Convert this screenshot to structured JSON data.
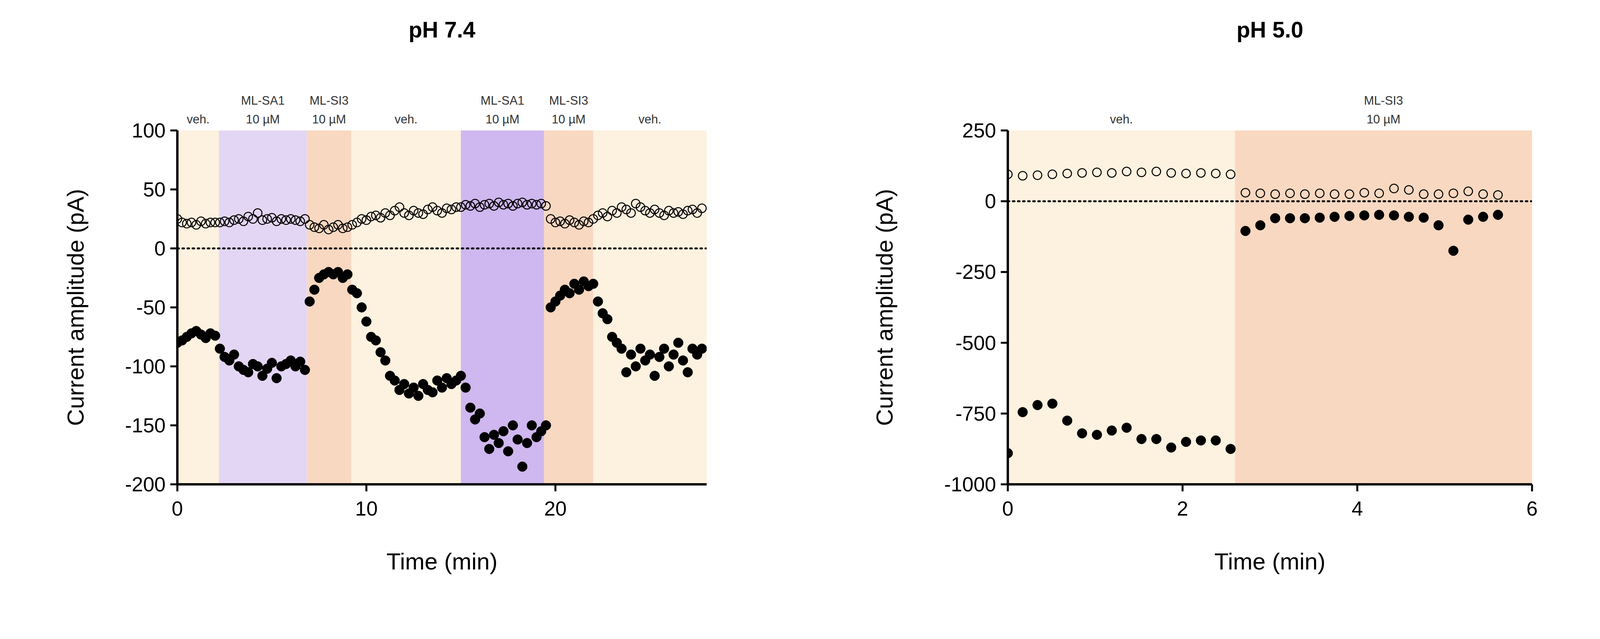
{
  "chart_data": [
    {
      "type": "scatter",
      "title": "pH 7.4",
      "x_label": "Time (min)",
      "y_label": "Current amplitude (pA)",
      "xlim": [
        0,
        28
      ],
      "xticks": [
        0,
        10,
        20
      ],
      "ylim": [
        -200,
        100
      ],
      "yticks": [
        -200,
        -150,
        -100,
        -50,
        0,
        50,
        100
      ],
      "annotations": [
        {
          "type": "hline",
          "y": 0,
          "line_style": "dotted"
        }
      ],
      "bands": [
        {
          "x0": 0,
          "x1": 2.2,
          "label": "veh.",
          "color": "#fdf1df"
        },
        {
          "x0": 2.2,
          "x1": 6.85,
          "label": "ML-SA1",
          "concentration": "10 µM",
          "color": "#e3d6f4"
        },
        {
          "x0": 6.85,
          "x1": 9.2,
          "label": "ML-SI3",
          "concentration": "10 µM",
          "color": "#f9d8c1"
        },
        {
          "x0": 9.2,
          "x1": 15,
          "label": "veh.",
          "color": "#fdf1df"
        },
        {
          "x0": 15,
          "x1": 19.4,
          "label": "ML-SA1",
          "concentration": "10 µM",
          "color": "#cfb7ef"
        },
        {
          "x0": 19.4,
          "x1": 22,
          "label": "ML-SI3",
          "concentration": "10 µM",
          "color": "#f9d8c1"
        },
        {
          "x0": 22,
          "x1": 28,
          "label": "veh.",
          "color": "#fdf1df"
        }
      ],
      "x": [
        0,
        0.25,
        0.5,
        0.75,
        1,
        1.25,
        1.5,
        1.75,
        2,
        2.25,
        2.5,
        2.75,
        3,
        3.25,
        3.5,
        3.75,
        4,
        4.25,
        4.5,
        4.75,
        5,
        5.25,
        5.5,
        5.75,
        6,
        6.25,
        6.5,
        6.75,
        7,
        7.25,
        7.5,
        7.75,
        8,
        8.25,
        8.5,
        8.75,
        9,
        9.25,
        9.5,
        9.75,
        10,
        10.25,
        10.5,
        10.75,
        11,
        11.25,
        11.5,
        11.75,
        12,
        12.25,
        12.5,
        12.75,
        13,
        13.25,
        13.5,
        13.75,
        14,
        14.25,
        14.5,
        14.75,
        15,
        15.25,
        15.5,
        15.75,
        16,
        16.25,
        16.5,
        16.75,
        17,
        17.25,
        17.5,
        17.75,
        18,
        18.25,
        18.5,
        18.75,
        19,
        19.25,
        19.5,
        19.75,
        20,
        20.25,
        20.5,
        20.75,
        21,
        21.25,
        21.5,
        21.75,
        22,
        22.25,
        22.5,
        22.75,
        23,
        23.25,
        23.5,
        23.75,
        24,
        24.25,
        24.5,
        24.75,
        25,
        25.25,
        25.5,
        25.75,
        26,
        26.25,
        26.5,
        26.75,
        27,
        27.25,
        27.5,
        27.75
      ],
      "series": [
        {
          "marker": "filled circle",
          "color": "#000000",
          "values": [
            -80,
            -78,
            -75,
            -72,
            -70,
            -73,
            -76,
            -72,
            -74,
            -85,
            -92,
            -95,
            -90,
            -100,
            -103,
            -105,
            -98,
            -100,
            -108,
            -102,
            -97,
            -110,
            -100,
            -98,
            -95,
            -100,
            -96,
            -103,
            -45,
            -35,
            -25,
            -22,
            -20,
            -22,
            -20,
            -25,
            -22,
            -35,
            -38,
            -50,
            -62,
            -75,
            -78,
            -88,
            -95,
            -108,
            -112,
            -120,
            -115,
            -123,
            -118,
            -125,
            -115,
            -120,
            -122,
            -112,
            -118,
            -110,
            -115,
            -112,
            -108,
            -118,
            -135,
            -145,
            -140,
            -160,
            -170,
            -158,
            -165,
            -155,
            -172,
            -150,
            -162,
            -185,
            -165,
            -150,
            -160,
            -155,
            -150,
            -50,
            -45,
            -40,
            -35,
            -38,
            -30,
            -35,
            -28,
            -32,
            -30,
            -45,
            -55,
            -60,
            -75,
            -80,
            -85,
            -105,
            -90,
            -100,
            -85,
            -95,
            -90,
            -108,
            -92,
            -85,
            -100,
            -90,
            -80,
            -95,
            -105,
            -85,
            -90,
            -85
          ]
        },
        {
          "marker": "open circle",
          "color": "#000000",
          "values": [
            25,
            22,
            21,
            22,
            20,
            23,
            21,
            22,
            22,
            22,
            23,
            22,
            24,
            25,
            23,
            27,
            25,
            30,
            24,
            25,
            26,
            23,
            25,
            24,
            25,
            24,
            23,
            25,
            20,
            18,
            17,
            20,
            16,
            18,
            20,
            17,
            18,
            20,
            22,
            25,
            24,
            27,
            28,
            26,
            30,
            28,
            32,
            35,
            30,
            28,
            32,
            30,
            29,
            33,
            35,
            32,
            30,
            34,
            33,
            35,
            35,
            37,
            36,
            38,
            35,
            37,
            38,
            36,
            39,
            37,
            38,
            36,
            38,
            39,
            37,
            38,
            37,
            38,
            36,
            25,
            22,
            23,
            21,
            24,
            22,
            20,
            23,
            22,
            25,
            28,
            30,
            27,
            32,
            30,
            35,
            33,
            30,
            38,
            35,
            32,
            30,
            33,
            30,
            28,
            32,
            30,
            31,
            29,
            32,
            33,
            30,
            34
          ]
        }
      ]
    },
    {
      "type": "scatter",
      "title": "pH 5.0",
      "x_label": "Time (min)",
      "y_label": "Current amplitude (pA)",
      "xlim": [
        0,
        6
      ],
      "xticks": [
        0,
        2,
        4,
        6
      ],
      "ylim": [
        -1000,
        250
      ],
      "yticks": [
        -1000,
        -750,
        -500,
        -250,
        0,
        250
      ],
      "annotations": [
        {
          "type": "hline",
          "y": 0,
          "line_style": "dotted"
        }
      ],
      "bands": [
        {
          "x0": 0,
          "x1": 2.6,
          "label": "veh.",
          "color": "#fdf1df"
        },
        {
          "x0": 2.6,
          "x1": 6,
          "label": "ML-SI3",
          "concentration": "10 µM",
          "color": "#f9d8c1"
        }
      ],
      "x": [
        0,
        0.17,
        0.34,
        0.51,
        0.68,
        0.85,
        1.02,
        1.19,
        1.36,
        1.53,
        1.7,
        1.87,
        2.04,
        2.21,
        2.38,
        2.55,
        2.72,
        2.89,
        3.06,
        3.23,
        3.4,
        3.57,
        3.74,
        3.91,
        4.08,
        4.25,
        4.42,
        4.59,
        4.76,
        4.93,
        5.1,
        5.27,
        5.44,
        5.61
      ],
      "series": [
        {
          "marker": "filled circle",
          "color": "#000000",
          "values": [
            -890,
            -745,
            -720,
            -715,
            -775,
            -820,
            -825,
            -810,
            -800,
            -840,
            -840,
            -870,
            -850,
            -845,
            -845,
            -875,
            -105,
            -85,
            -60,
            -60,
            -60,
            -58,
            -55,
            -52,
            -50,
            -48,
            -50,
            -55,
            -58,
            -85,
            -175,
            -65,
            -55,
            -48
          ]
        },
        {
          "marker": "open circle",
          "color": "#000000",
          "values": [
            95,
            90,
            92,
            95,
            98,
            100,
            102,
            100,
            105,
            102,
            105,
            100,
            98,
            100,
            98,
            95,
            30,
            28,
            25,
            28,
            25,
            28,
            25,
            25,
            30,
            28,
            45,
            40,
            25,
            25,
            28,
            35,
            25,
            22
          ]
        }
      ]
    }
  ]
}
